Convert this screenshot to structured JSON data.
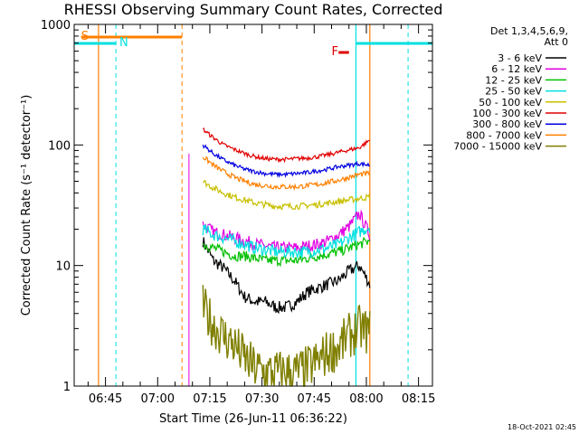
{
  "chart_data": {
    "type": "line",
    "title": "RHESSI Observing Summary Count Rates, Corrected",
    "xlabel": "Start Time (26-Jun-11 06:36:22)",
    "ylabel": "Corrected Count Rate (s⁻¹ detector⁻¹)",
    "y_scale": "log",
    "ylim": [
      1,
      1000
    ],
    "xlim_minutes_after_0636": [
      0,
      103
    ],
    "x_ticks": [
      "06:45",
      "07:00",
      "07:15",
      "07:30",
      "07:45",
      "08:00",
      "08:15"
    ],
    "y_ticks": [
      "1",
      "10",
      "100",
      "1000"
    ],
    "legend_header": [
      "Det 1,3,4,5,6,9,",
      "Att 0"
    ],
    "legend_placement": "right",
    "series": [
      {
        "name": "3 - 6 keV",
        "color": "#000000",
        "times": [
          "07:13",
          "07:16",
          "07:19",
          "07:22",
          "07:25",
          "07:28",
          "07:31",
          "07:34",
          "07:37",
          "07:40",
          "07:43",
          "07:46",
          "07:49",
          "07:52",
          "07:55",
          "07:58",
          "08:01"
        ],
        "values": [
          16,
          11,
          9.5,
          7.5,
          5.5,
          5,
          5,
          4.5,
          4.5,
          5,
          6,
          6.5,
          7,
          7.5,
          9,
          10,
          7
        ]
      },
      {
        "name": "6 - 12 keV",
        "color": "#e000e0",
        "times": [
          "07:13",
          "07:16",
          "07:19",
          "07:22",
          "07:25",
          "07:28",
          "07:31",
          "07:34",
          "07:37",
          "07:40",
          "07:43",
          "07:46",
          "07:49",
          "07:52",
          "07:55",
          "07:58",
          "08:01"
        ],
        "values": [
          22,
          19,
          18,
          17,
          16,
          15,
          14.5,
          14,
          14,
          14,
          14.5,
          15,
          16,
          18,
          21,
          27,
          18
        ]
      },
      {
        "name": "12 - 25 keV",
        "color": "#00c000",
        "times": [
          "07:13",
          "07:16",
          "07:19",
          "07:22",
          "07:25",
          "07:28",
          "07:31",
          "07:34",
          "07:37",
          "07:40",
          "07:43",
          "07:46",
          "07:49",
          "07:52",
          "07:55",
          "07:58",
          "08:01"
        ],
        "values": [
          15,
          14,
          13,
          12,
          12,
          11.5,
          11,
          11,
          11,
          11,
          11.5,
          12,
          12.5,
          13,
          14,
          15,
          16
        ]
      },
      {
        "name": "25 - 50 keV",
        "color": "#00e0e0",
        "times": [
          "07:13",
          "07:16",
          "07:19",
          "07:22",
          "07:25",
          "07:28",
          "07:31",
          "07:34",
          "07:37",
          "07:40",
          "07:43",
          "07:46",
          "07:49",
          "07:52",
          "07:55",
          "07:58",
          "08:01"
        ],
        "values": [
          20,
          18,
          17,
          16,
          15,
          14,
          13.5,
          13,
          13,
          13,
          13,
          13.5,
          14,
          15,
          17,
          19,
          21
        ]
      },
      {
        "name": "50 - 100 keV",
        "color": "#c8c000",
        "times": [
          "07:13",
          "07:16",
          "07:19",
          "07:22",
          "07:25",
          "07:28",
          "07:31",
          "07:34",
          "07:37",
          "07:40",
          "07:43",
          "07:46",
          "07:49",
          "07:52",
          "07:55",
          "07:58",
          "08:01"
        ],
        "values": [
          50,
          44,
          40,
          37,
          35,
          33,
          32,
          31,
          31,
          31,
          31.5,
          32,
          33,
          34,
          35,
          36,
          37
        ]
      },
      {
        "name": "100 - 300 keV",
        "color": "#e00000",
        "times": [
          "07:13",
          "07:16",
          "07:19",
          "07:22",
          "07:25",
          "07:28",
          "07:31",
          "07:34",
          "07:37",
          "07:40",
          "07:43",
          "07:46",
          "07:49",
          "07:52",
          "07:55",
          "07:58",
          "08:01"
        ],
        "values": [
          135,
          115,
          100,
          92,
          85,
          80,
          77,
          76,
          76,
          77,
          78,
          80,
          83,
          87,
          91,
          95,
          110
        ]
      },
      {
        "name": "300 - 800 keV",
        "color": "#0000e0",
        "times": [
          "07:13",
          "07:16",
          "07:19",
          "07:22",
          "07:25",
          "07:28",
          "07:31",
          "07:34",
          "07:37",
          "07:40",
          "07:43",
          "07:46",
          "07:49",
          "07:52",
          "07:55",
          "07:58",
          "08:01"
        ],
        "values": [
          100,
          85,
          75,
          68,
          63,
          60,
          58,
          57,
          57,
          58,
          59,
          61,
          63,
          66,
          68,
          70,
          68
        ]
      },
      {
        "name": "800 - 7000 keV",
        "color": "#ff7f00",
        "times": [
          "07:13",
          "07:16",
          "07:19",
          "07:22",
          "07:25",
          "07:28",
          "07:31",
          "07:34",
          "07:37",
          "07:40",
          "07:43",
          "07:46",
          "07:49",
          "07:52",
          "07:55",
          "07:58",
          "08:01"
        ],
        "values": [
          80,
          68,
          60,
          54,
          50,
          47,
          46,
          45,
          45,
          45,
          46,
          47,
          49,
          51,
          54,
          57,
          58
        ]
      },
      {
        "name": "7000 - 15000 keV",
        "color": "#7f7f00",
        "times": [
          "07:13",
          "07:16",
          "07:19",
          "07:22",
          "07:25",
          "07:28",
          "07:31",
          "07:34",
          "07:37",
          "07:40",
          "07:43",
          "07:46",
          "07:49",
          "07:52",
          "07:55",
          "07:58",
          "08:01"
        ],
        "values": [
          4.5,
          3.2,
          2.6,
          2.2,
          1.7,
          1.4,
          1.3,
          1.3,
          1.3,
          1.3,
          1.4,
          1.6,
          1.9,
          2.1,
          2.6,
          3.0,
          2.8
        ]
      }
    ],
    "flags": [
      {
        "label": "S",
        "color": "#ff7f00"
      },
      {
        "label": "N",
        "color": "#00e0e0"
      },
      {
        "label": "F",
        "color": "#e00000"
      }
    ]
  },
  "timestamp": "18-Oct-2021 02:45"
}
